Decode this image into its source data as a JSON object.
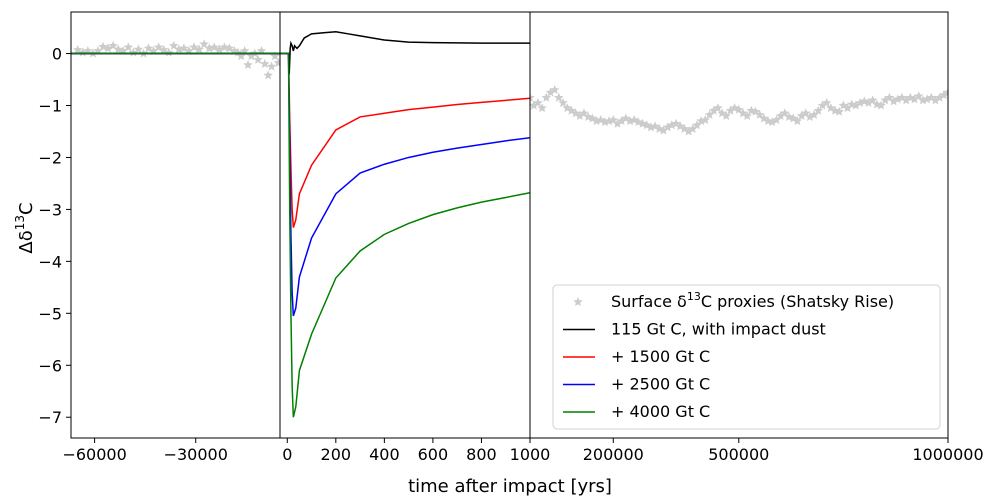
{
  "chart_data": {
    "type": "line",
    "xlabel": "time after impact [yrs]",
    "ylabel_prefix": "Δδ",
    "ylabel_sup": "13",
    "ylabel_suffix": "C",
    "ylim": [
      -7.4,
      0.8
    ],
    "yticks": [
      0,
      -1,
      -2,
      -3,
      -4,
      -5,
      -6,
      -7
    ],
    "ytick_labels": [
      "0",
      "−1",
      "−2",
      "−3",
      "−4",
      "−5",
      "−6",
      "−7"
    ],
    "panels": [
      {
        "name": "pre-impact",
        "xlim": [
          -67000,
          -5000
        ],
        "xticks": [
          -60000,
          -30000
        ],
        "xtick_labels": [
          "−60000",
          "−30000"
        ]
      },
      {
        "name": "post-impact",
        "xlim": [
          -30,
          1000
        ],
        "xticks": [
          0,
          200,
          400,
          600,
          800,
          1000
        ],
        "xtick_labels": [
          "0",
          "200",
          "400",
          "600",
          "800",
          "1000"
        ]
      },
      {
        "name": "long-term",
        "xlim": [
          1000,
          1000000
        ],
        "xticks": [
          200000,
          500000,
          1000000
        ],
        "xtick_labels": [
          "200000",
          "500000",
          "1000000"
        ]
      }
    ],
    "proxies": {
      "name_prefix": "Surface δ",
      "name_sup": "13",
      "name_suffix": "C proxies (Shatsky Rise)",
      "color": "#cccccc",
      "pre_impact": [
        [
          -65000,
          0.07
        ],
        [
          -63500,
          0.02
        ],
        [
          -62000,
          0.05
        ],
        [
          -60500,
          0.0
        ],
        [
          -59000,
          0.05
        ],
        [
          -57500,
          0.13
        ],
        [
          -56000,
          0.1
        ],
        [
          -54500,
          0.15
        ],
        [
          -53000,
          0.08
        ],
        [
          -51500,
          0.05
        ],
        [
          -50000,
          0.12
        ],
        [
          -48500,
          0.02
        ],
        [
          -47000,
          0.08
        ],
        [
          -45500,
          0.0
        ],
        [
          -44000,
          0.1
        ],
        [
          -42500,
          0.05
        ],
        [
          -41000,
          0.12
        ],
        [
          -39500,
          0.07
        ],
        [
          -38000,
          0.02
        ],
        [
          -36500,
          0.15
        ],
        [
          -35000,
          0.08
        ],
        [
          -33500,
          0.1
        ],
        [
          -32000,
          0.05
        ],
        [
          -30500,
          0.12
        ],
        [
          -29000,
          0.08
        ],
        [
          -27500,
          0.18
        ],
        [
          -26000,
          0.1
        ],
        [
          -24500,
          0.12
        ],
        [
          -23000,
          0.08
        ],
        [
          -21500,
          0.12
        ],
        [
          -20000,
          0.1
        ],
        [
          -18500,
          0.05
        ],
        [
          -17500,
          0.02
        ],
        [
          -16500,
          -0.05
        ],
        [
          -15500,
          0.05
        ],
        [
          -14500,
          -0.22
        ],
        [
          -13500,
          -0.05
        ],
        [
          -12500,
          0.0
        ],
        [
          -11500,
          -0.12
        ],
        [
          -10500,
          0.05
        ],
        [
          -9500,
          -0.2
        ],
        [
          -8500,
          -0.42
        ],
        [
          -7500,
          -0.25
        ],
        [
          -6500,
          -0.05
        ],
        [
          -5500,
          -0.18
        ]
      ],
      "long_term": [
        [
          1000,
          -0.85
        ],
        [
          10000,
          -1.0
        ],
        [
          20000,
          -0.95
        ],
        [
          30000,
          -1.05
        ],
        [
          40000,
          -0.85
        ],
        [
          50000,
          -0.75
        ],
        [
          60000,
          -0.7
        ],
        [
          70000,
          -0.85
        ],
        [
          80000,
          -0.95
        ],
        [
          90000,
          -1.05
        ],
        [
          100000,
          -1.1
        ],
        [
          110000,
          -1.15
        ],
        [
          120000,
          -1.2
        ],
        [
          130000,
          -1.15
        ],
        [
          140000,
          -1.22
        ],
        [
          150000,
          -1.25
        ],
        [
          160000,
          -1.3
        ],
        [
          170000,
          -1.28
        ],
        [
          180000,
          -1.32
        ],
        [
          190000,
          -1.3
        ],
        [
          200000,
          -1.28
        ],
        [
          210000,
          -1.35
        ],
        [
          220000,
          -1.3
        ],
        [
          230000,
          -1.25
        ],
        [
          240000,
          -1.3
        ],
        [
          250000,
          -1.28
        ],
        [
          260000,
          -1.32
        ],
        [
          270000,
          -1.35
        ],
        [
          280000,
          -1.38
        ],
        [
          290000,
          -1.42
        ],
        [
          300000,
          -1.4
        ],
        [
          310000,
          -1.45
        ],
        [
          320000,
          -1.48
        ],
        [
          330000,
          -1.42
        ],
        [
          340000,
          -1.38
        ],
        [
          350000,
          -1.35
        ],
        [
          360000,
          -1.4
        ],
        [
          370000,
          -1.45
        ],
        [
          380000,
          -1.5
        ],
        [
          390000,
          -1.45
        ],
        [
          400000,
          -1.38
        ],
        [
          410000,
          -1.3
        ],
        [
          420000,
          -1.28
        ],
        [
          430000,
          -1.18
        ],
        [
          440000,
          -1.1
        ],
        [
          450000,
          -1.05
        ],
        [
          460000,
          -1.15
        ],
        [
          470000,
          -1.2
        ],
        [
          480000,
          -1.1
        ],
        [
          490000,
          -1.05
        ],
        [
          500000,
          -1.08
        ],
        [
          510000,
          -1.15
        ],
        [
          520000,
          -1.2
        ],
        [
          530000,
          -1.1
        ],
        [
          540000,
          -1.12
        ],
        [
          550000,
          -1.18
        ],
        [
          560000,
          -1.25
        ],
        [
          570000,
          -1.3
        ],
        [
          580000,
          -1.32
        ],
        [
          590000,
          -1.28
        ],
        [
          600000,
          -1.2
        ],
        [
          610000,
          -1.15
        ],
        [
          620000,
          -1.22
        ],
        [
          630000,
          -1.25
        ],
        [
          640000,
          -1.3
        ],
        [
          650000,
          -1.2
        ],
        [
          660000,
          -1.15
        ],
        [
          670000,
          -1.22
        ],
        [
          680000,
          -1.18
        ],
        [
          690000,
          -1.1
        ],
        [
          700000,
          -1.0
        ],
        [
          710000,
          -0.95
        ],
        [
          720000,
          -1.05
        ],
        [
          730000,
          -1.1
        ],
        [
          740000,
          -1.12
        ],
        [
          750000,
          -1.0
        ],
        [
          760000,
          -1.05
        ],
        [
          770000,
          -0.98
        ],
        [
          780000,
          -1.0
        ],
        [
          790000,
          -0.95
        ],
        [
          800000,
          -0.92
        ],
        [
          810000,
          -0.95
        ],
        [
          820000,
          -0.9
        ],
        [
          830000,
          -0.98
        ],
        [
          840000,
          -1.0
        ],
        [
          850000,
          -0.9
        ],
        [
          860000,
          -0.85
        ],
        [
          870000,
          -0.92
        ],
        [
          880000,
          -0.88
        ],
        [
          890000,
          -0.85
        ],
        [
          900000,
          -0.9
        ],
        [
          910000,
          -0.85
        ],
        [
          920000,
          -0.88
        ],
        [
          930000,
          -0.82
        ],
        [
          940000,
          -0.9
        ],
        [
          950000,
          -0.88
        ],
        [
          960000,
          -0.85
        ],
        [
          970000,
          -0.9
        ],
        [
          980000,
          -0.85
        ],
        [
          990000,
          -0.8
        ],
        [
          1000000,
          -0.75
        ]
      ]
    },
    "series": [
      {
        "name": "115 Gt C, with impact dust",
        "color": "#000000",
        "pre": [
          [
            -67000,
            0
          ],
          [
            -5000,
            0
          ]
        ],
        "post": [
          [
            -30,
            0
          ],
          [
            5,
            0
          ],
          [
            8,
            -0.4
          ],
          [
            12,
            0.1
          ],
          [
            15,
            0.2
          ],
          [
            20,
            0.15
          ],
          [
            25,
            0.05
          ],
          [
            30,
            0.15
          ],
          [
            40,
            0.1
          ],
          [
            50,
            0.15
          ],
          [
            70,
            0.3
          ],
          [
            100,
            0.38
          ],
          [
            150,
            0.4
          ],
          [
            200,
            0.42
          ],
          [
            250,
            0.38
          ],
          [
            300,
            0.34
          ],
          [
            400,
            0.26
          ],
          [
            500,
            0.22
          ],
          [
            600,
            0.21
          ],
          [
            800,
            0.2
          ],
          [
            1000,
            0.2
          ]
        ]
      },
      {
        "name": "+ 1500 Gt C",
        "color": "#ff0000",
        "pre": [
          [
            -67000,
            0
          ],
          [
            -5000,
            0
          ]
        ],
        "post": [
          [
            -30,
            0
          ],
          [
            5,
            0
          ],
          [
            10,
            -1.25
          ],
          [
            15,
            -2.2
          ],
          [
            20,
            -3.0
          ],
          [
            25,
            -3.35
          ],
          [
            35,
            -3.2
          ],
          [
            50,
            -2.7
          ],
          [
            100,
            -2.15
          ],
          [
            200,
            -1.47
          ],
          [
            300,
            -1.22
          ],
          [
            400,
            -1.15
          ],
          [
            500,
            -1.08
          ],
          [
            600,
            -1.03
          ],
          [
            700,
            -0.98
          ],
          [
            800,
            -0.94
          ],
          [
            900,
            -0.9
          ],
          [
            1000,
            -0.86
          ]
        ]
      },
      {
        "name": "+ 2500 Gt C",
        "color": "#0000ff",
        "pre": [
          [
            -67000,
            0
          ],
          [
            -5000,
            0
          ]
        ],
        "post": [
          [
            -30,
            0
          ],
          [
            5,
            0
          ],
          [
            10,
            -1.8
          ],
          [
            15,
            -3.5
          ],
          [
            20,
            -4.6
          ],
          [
            25,
            -5.05
          ],
          [
            35,
            -4.9
          ],
          [
            50,
            -4.3
          ],
          [
            100,
            -3.55
          ],
          [
            200,
            -2.7
          ],
          [
            300,
            -2.3
          ],
          [
            400,
            -2.13
          ],
          [
            500,
            -2.0
          ],
          [
            600,
            -1.9
          ],
          [
            700,
            -1.82
          ],
          [
            800,
            -1.75
          ],
          [
            900,
            -1.68
          ],
          [
            1000,
            -1.62
          ]
        ]
      },
      {
        "name": "+ 4000 Gt C",
        "color": "#008000",
        "pre": [
          [
            -67000,
            0
          ],
          [
            -5000,
            0
          ]
        ],
        "post": [
          [
            -30,
            0
          ],
          [
            5,
            0
          ],
          [
            10,
            -3.0
          ],
          [
            15,
            -5.0
          ],
          [
            20,
            -6.4
          ],
          [
            25,
            -7.0
          ],
          [
            35,
            -6.8
          ],
          [
            50,
            -6.1
          ],
          [
            100,
            -5.4
          ],
          [
            200,
            -4.32
          ],
          [
            300,
            -3.8
          ],
          [
            400,
            -3.48
          ],
          [
            500,
            -3.27
          ],
          [
            600,
            -3.1
          ],
          [
            700,
            -2.97
          ],
          [
            800,
            -2.86
          ],
          [
            900,
            -2.77
          ],
          [
            1000,
            -2.68
          ]
        ]
      }
    ],
    "legend_position": "lower right"
  }
}
